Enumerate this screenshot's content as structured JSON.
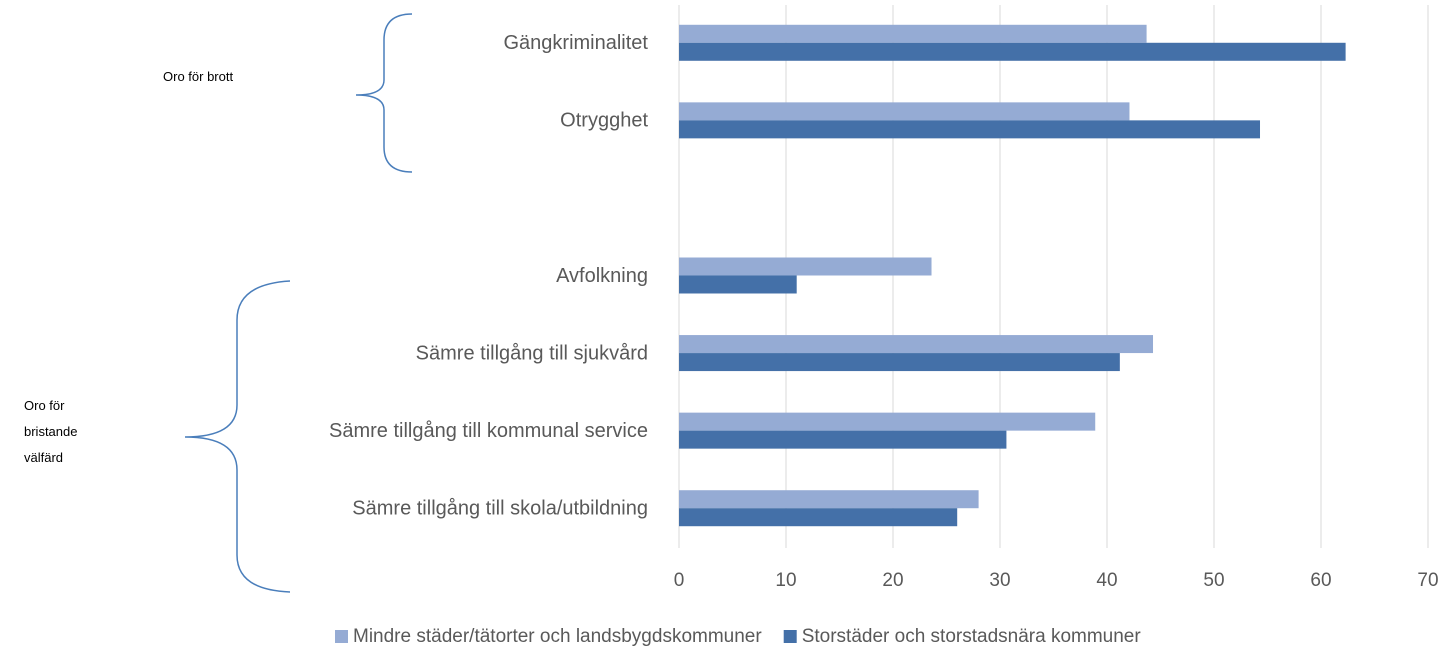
{
  "chart_data": {
    "type": "hbar",
    "categories": [
      "Gängkriminalitet",
      "Otrygghet",
      null,
      "Avfolkning",
      "Sämre tillgång till sjukvård",
      "Sämre tillgång till kommunal service",
      "Sämre tillgång till skola/utbildning"
    ],
    "series": [
      {
        "name": "Mindre städer/tätorter och landsbygdskommuner",
        "color": "#95abd4",
        "values": [
          43.7,
          42.1,
          null,
          23.6,
          44.3,
          38.9,
          28
        ]
      },
      {
        "name": "Storstäder och storstadsnära kommuner",
        "color": "#4470a8",
        "values": [
          62.3,
          54.3,
          null,
          11,
          41.2,
          30.6,
          26
        ]
      }
    ],
    "xlim": [
      0,
      70
    ],
    "xticks": [
      0,
      10,
      20,
      30,
      40,
      50,
      60,
      70
    ],
    "grid": true,
    "legend": "bottom",
    "annotations": [
      "Oro för brott",
      "Oro för bristande välfärd"
    ]
  }
}
